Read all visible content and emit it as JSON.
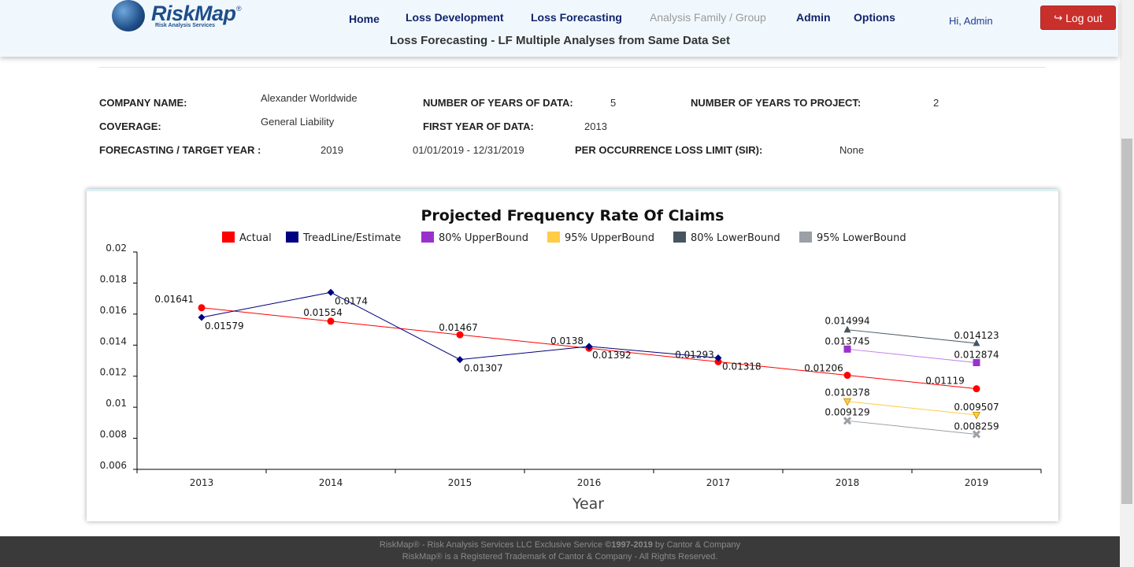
{
  "header": {
    "brand": "RiskMap",
    "brand_reg": "®",
    "brand_tagline": "Risk Analysis Services",
    "nav": [
      {
        "label": "Home",
        "enabled": true
      },
      {
        "label": "Loss Development",
        "enabled": true
      },
      {
        "label": "Loss Forecasting",
        "enabled": true
      },
      {
        "label": "Analysis Family / Group",
        "enabled": false
      },
      {
        "label": "Admin",
        "enabled": true
      },
      {
        "label": "Options",
        "enabled": true
      }
    ],
    "greeting": "Hi, Admin",
    "logout_label": "Log out",
    "logout_icon": "sign-out-icon",
    "logout_color": "#c9302c",
    "page_subtitle": "Loss Forecasting - LF Multiple Analyses from Same Data Set"
  },
  "info": {
    "company_label": "COMPANY NAME:",
    "company_value": "Alexander Worldwide",
    "coverage_label": "COVERAGE:",
    "coverage_value": "General Liability",
    "target_year_label": "FORECASTING / TARGET YEAR :",
    "target_year_value": "2019",
    "target_period_value": "01/01/2019 - 12/31/2019",
    "years_data_label": "NUMBER OF YEARS OF DATA:",
    "years_data_value": "5",
    "first_year_label": "FIRST YEAR OF DATA:",
    "first_year_value": "2013",
    "sir_label": "PER OCCURRENCE LOSS LIMIT (SIR):",
    "sir_value": "None",
    "years_project_label": "NUMBER OF YEARS TO PROJECT:",
    "years_project_value": "2"
  },
  "chart_data": {
    "type": "line",
    "title": "Projected Frequency Rate Of Claims",
    "xlabel": "Year",
    "ylabel": "",
    "categories": [
      "2013",
      "2014",
      "2015",
      "2016",
      "2017",
      "2018",
      "2019"
    ],
    "ylim": [
      0.006,
      0.02
    ],
    "yticks": [
      "0.006",
      "0.008",
      "0.01",
      "0.012",
      "0.014",
      "0.016",
      "0.018",
      "0.02"
    ],
    "legend_position": "top-center",
    "grid": false,
    "series": [
      {
        "name": "Actual",
        "color": "#ff0000",
        "marker": "circle",
        "x": [
          "2013",
          "2014",
          "2015",
          "2016",
          "2017",
          "2018",
          "2019"
        ],
        "values": [
          0.01641,
          0.01554,
          0.01467,
          0.0138,
          0.01293,
          0.01206,
          0.01119
        ],
        "labels": [
          "0.01641",
          "0.01554",
          "0.01467",
          "0.0138",
          "0.01293",
          "0.01206",
          "0.01119"
        ]
      },
      {
        "name": "TreadLine/Estimate",
        "color": "#000080",
        "marker": "diamond",
        "x": [
          "2013",
          "2014",
          "2015",
          "2016",
          "2017"
        ],
        "values": [
          0.01579,
          0.0174,
          0.01307,
          0.01392,
          0.01318
        ],
        "labels": [
          "0.01579",
          "0.0174",
          "0.01307",
          "0.01392",
          "0.01318"
        ]
      },
      {
        "name": "80% UpperBound",
        "color": "#9932cc",
        "marker": "square",
        "x": [
          "2018",
          "2019"
        ],
        "values": [
          0.013745,
          0.012874
        ],
        "labels": [
          "0.013745",
          "0.012874"
        ]
      },
      {
        "name": "95% UpperBound",
        "color": "#ffcc44",
        "marker": "triangle-down",
        "x": [
          "2018",
          "2019"
        ],
        "values": [
          0.010378,
          0.009507
        ],
        "labels": [
          "0.010378",
          "0.009507"
        ]
      },
      {
        "name": "80% LowerBound",
        "color": "#465560",
        "marker": "triangle",
        "x": [
          "2018",
          "2019"
        ],
        "values": [
          0.014994,
          0.014123
        ],
        "labels": [
          "0.014994",
          "0.014123"
        ]
      },
      {
        "name": "95% LowerBound",
        "color": "#9aa0a6",
        "marker": "cross",
        "x": [
          "2018",
          "2019"
        ],
        "values": [
          0.009129,
          0.008259
        ],
        "labels": [
          "0.009129",
          "0.008259"
        ]
      }
    ]
  },
  "footer": {
    "line1_pre": "RiskMap® - Risk Analysis Services LLC Exclusive Service ",
    "line1_bold": "©1997-2019",
    "line1_post": " by Cantor & Company",
    "line2": "RiskMap® is a Registered Trademark of Cantor & Company - All Rights Reserved."
  }
}
